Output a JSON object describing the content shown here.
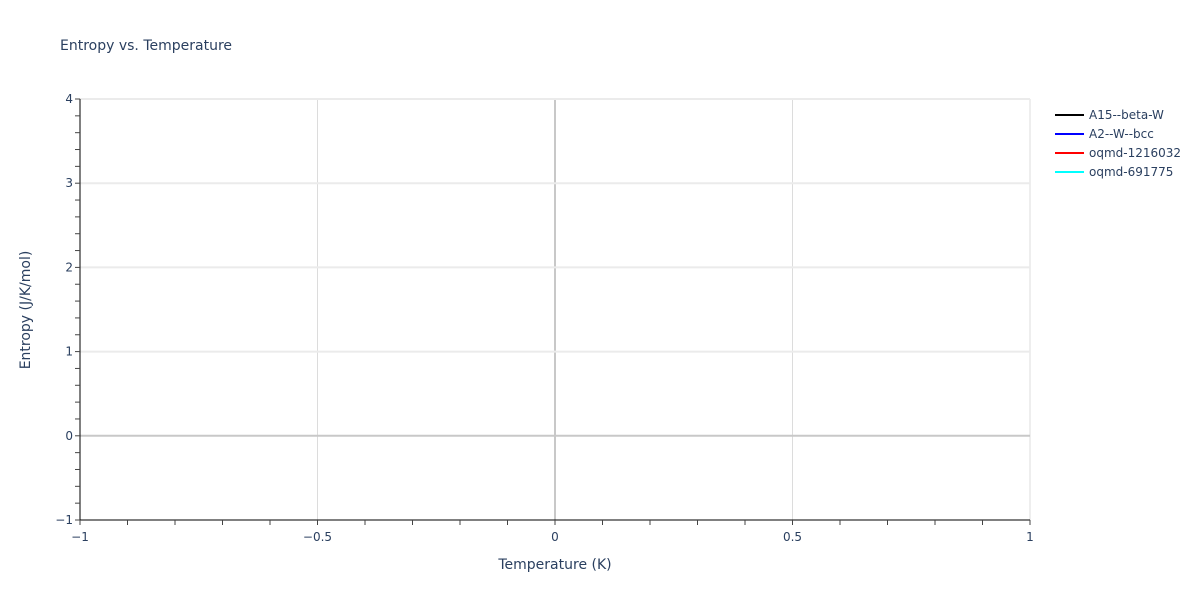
{
  "chart_data": {
    "type": "line",
    "title": "Entropy vs. Temperature",
    "xlabel": "Temperature (K)",
    "ylabel": "Entropy (J/K/mol)",
    "xlim": [
      -1,
      1
    ],
    "ylim": [
      -1,
      4
    ],
    "x_ticks": [
      -1,
      -0.5,
      0,
      0.5,
      1
    ],
    "x_tick_labels": [
      "−1",
      "−0.5",
      "0",
      "0.5",
      "1"
    ],
    "y_ticks": [
      -1,
      0,
      1,
      2,
      3,
      4
    ],
    "y_tick_labels": [
      "−1",
      "0",
      "1",
      "2",
      "3",
      "4"
    ],
    "grid": true,
    "legend_position": "right",
    "series": [
      {
        "name": "A15--beta-W",
        "color": "#000000",
        "x": [],
        "y": []
      },
      {
        "name": "A2--W--bcc",
        "color": "#0000ff",
        "x": [],
        "y": []
      },
      {
        "name": "oqmd-1216032",
        "color": "#ff0000",
        "x": [],
        "y": []
      },
      {
        "name": "oqmd-691775",
        "color": "#00ffff",
        "x": [],
        "y": []
      }
    ]
  }
}
